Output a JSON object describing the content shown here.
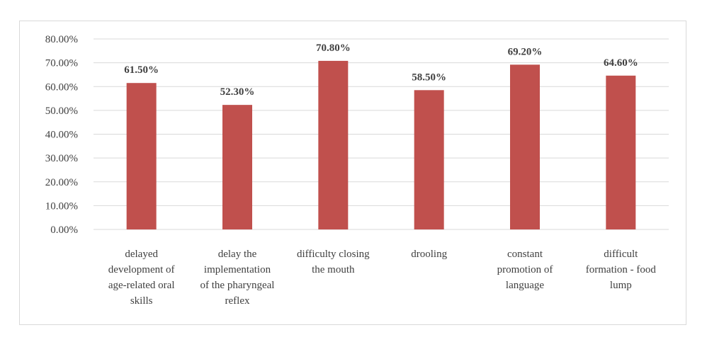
{
  "chart_data": {
    "type": "bar",
    "categories": [
      [
        "delayed",
        "development of",
        "age-related oral",
        "skills"
      ],
      [
        "delay the",
        "implementation",
        "of the pharyngeal",
        "reflex"
      ],
      [
        "difficulty closing",
        "the mouth"
      ],
      [
        "drooling"
      ],
      [
        "constant",
        "promotion of",
        "language"
      ],
      [
        "difficult",
        "formation - food",
        "lump"
      ]
    ],
    "values": [
      61.5,
      52.3,
      70.8,
      58.5,
      69.2,
      64.6
    ],
    "data_labels": [
      "61.50%",
      "52.30%",
      "70.80%",
      "58.50%",
      "69.20%",
      "64.60%"
    ],
    "ytick_labels": [
      "0.00%",
      "10.00%",
      "20.00%",
      "30.00%",
      "40.00%",
      "50.00%",
      "60.00%",
      "70.00%",
      "80.00%"
    ],
    "ylim": [
      0,
      80
    ],
    "ytick_step": 10,
    "title": "",
    "xlabel": "",
    "ylabel": "",
    "grid": true,
    "legend": "none",
    "colors": {
      "bar": "#c0504d",
      "grid": "#d9d9d9",
      "text": "#404040",
      "border": "#d9d9d9"
    }
  }
}
